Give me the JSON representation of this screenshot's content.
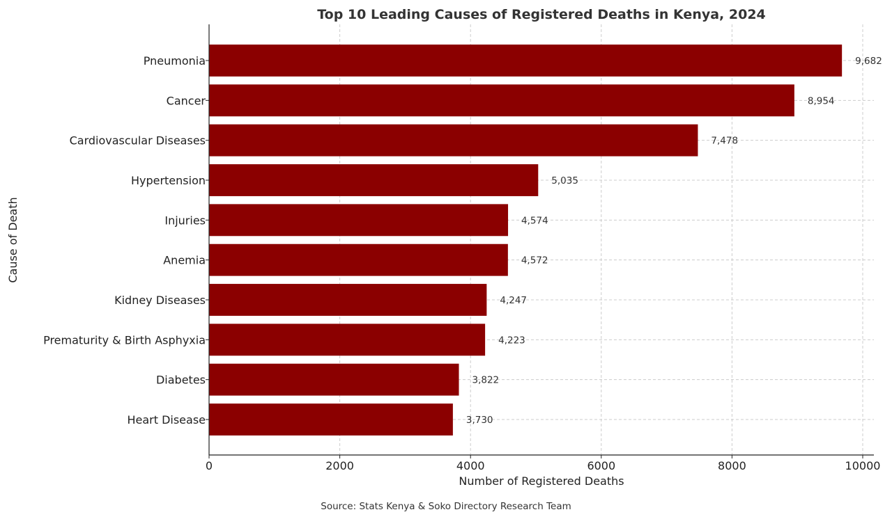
{
  "chart_data": {
    "type": "bar",
    "orientation": "horizontal",
    "title": "Top 10 Leading Causes of Registered Deaths in Kenya, 2024",
    "xlabel": "Number of Registered Deaths",
    "ylabel": "Cause of Death",
    "categories": [
      "Pneumonia",
      "Cancer",
      "Cardiovascular Diseases",
      "Hypertension",
      "Injuries",
      "Anemia",
      "Kidney Diseases",
      "Prematurity & Birth Asphyxia",
      "Diabetes",
      "Heart Disease"
    ],
    "values": [
      9682,
      8954,
      7478,
      5035,
      4574,
      4572,
      4247,
      4223,
      3822,
      3730
    ],
    "value_labels": [
      "9,682",
      "8,954",
      "7,478",
      "5,035",
      "4,574",
      "4,572",
      "4,247",
      "4,223",
      "3,822",
      "3,730"
    ],
    "xlim": [
      0,
      10000
    ],
    "xticks": [
      0,
      2000,
      4000,
      6000,
      8000,
      10000
    ],
    "xtick_labels": [
      "0",
      "2000",
      "4000",
      "6000",
      "8000",
      "10000"
    ],
    "grid": true,
    "grid_style": "dashed",
    "bar_color": "#8b0000",
    "source": "Source: Stats Kenya & Soko Directory Research Team"
  }
}
